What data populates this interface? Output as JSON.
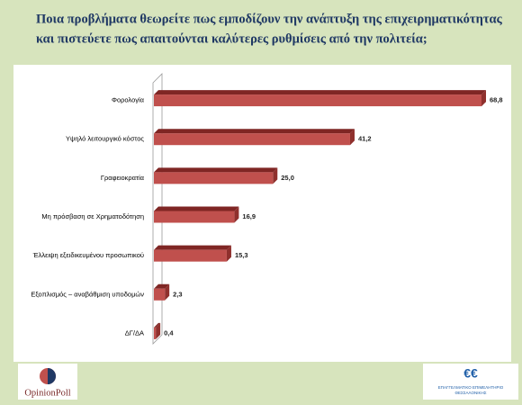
{
  "chart_data": {
    "type": "bar",
    "orientation": "horizontal",
    "title": [
      "Ποια προβλήματα θεωρείτε πως εμποδίζουν την ανάπτυξη της επιχειρηματικότητας",
      "και πιστεύετε πως απαιτούνται καλύτερες ρυθμίσεις από την πολιτεία;"
    ],
    "categories": [
      "Φορολογία",
      "Υψηλό λειτουργικό κόστος",
      "Γραφειοκρατία",
      "Μη πρόσβαση σε Χρηματοδότηση",
      "Έλλειψη εξειδικευμένου προσωπικού",
      "Εξοπλισμός – αναβάθμιση υποδομών",
      "ΔΓ/ΔΑ"
    ],
    "values": [
      68.8,
      41.2,
      25.0,
      16.9,
      15.3,
      2.3,
      0.4
    ],
    "value_labels": [
      "68,8",
      "41,2",
      "25,0",
      "16,9",
      "15,3",
      "2,3",
      "0,4"
    ],
    "color": "#c0504d"
  },
  "logos": {
    "left": "OpinionPoll",
    "right": [
      "ΕΠΑΓΓΕΛΜΑΤΙΚΟ ΕΠΙΜΕΛΗΤΗΡΙΟ",
      "ΘΕΣΣΑΛΟΝΙΚΗΣ"
    ]
  }
}
